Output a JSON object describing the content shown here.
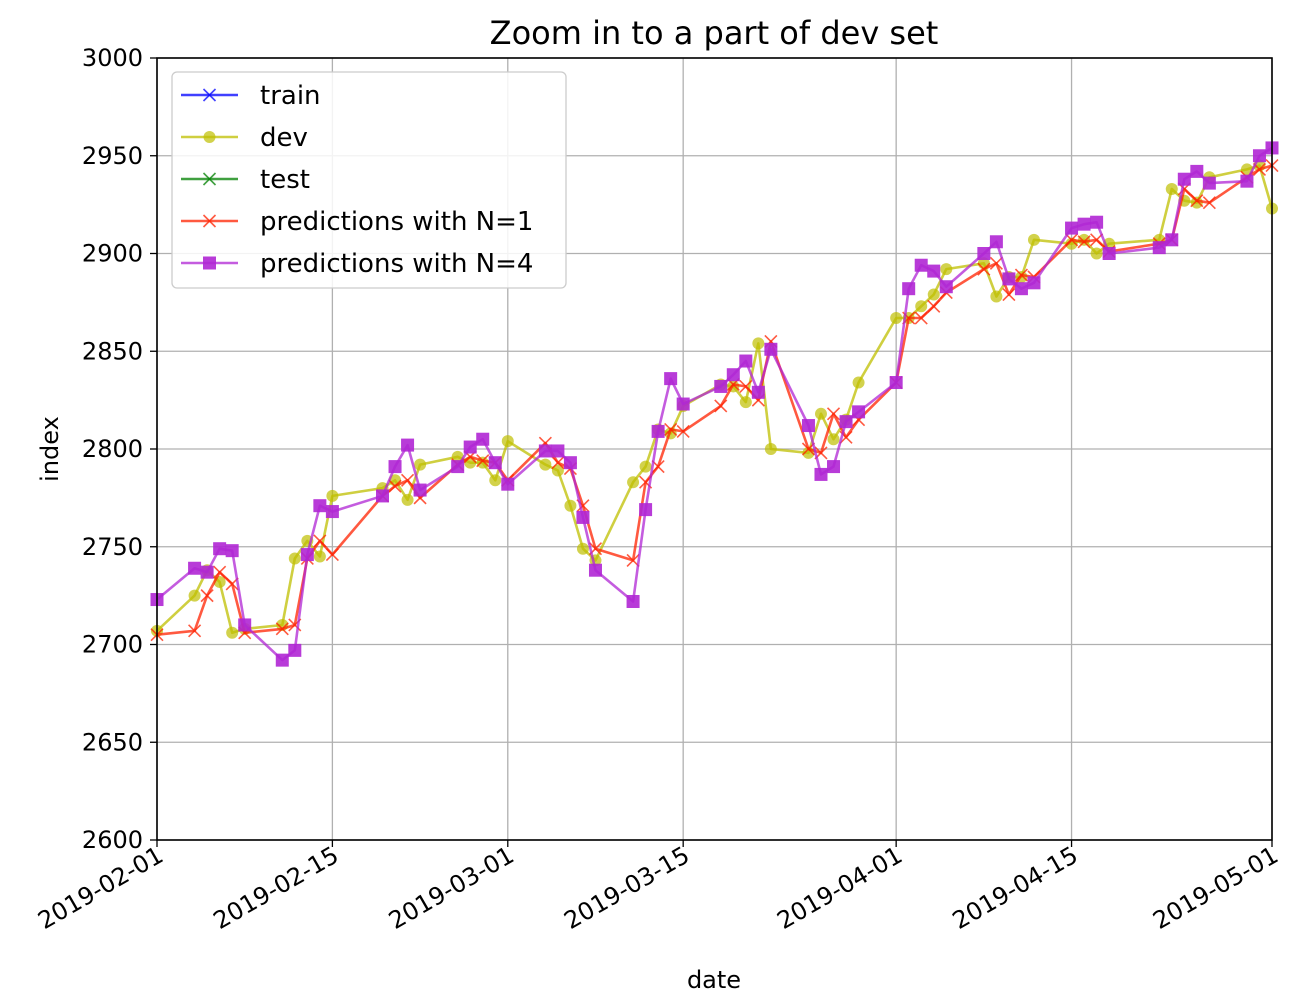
{
  "chart_data": {
    "type": "line",
    "title": "Zoom in to a part of dev set",
    "xlabel": "date",
    "ylabel": "index",
    "xlim": [
      "2019-02-01",
      "2019-05-01"
    ],
    "ylim": [
      2600,
      3000
    ],
    "x_ticks": [
      "2019-02-01",
      "2019-02-15",
      "2019-03-01",
      "2019-03-15",
      "2019-04-01",
      "2019-04-15",
      "2019-05-01"
    ],
    "y_ticks": [
      2600,
      2650,
      2700,
      2750,
      2800,
      2850,
      2900,
      2950,
      3000
    ],
    "grid": true,
    "legend_position": "upper-left",
    "series": [
      {
        "name": "train",
        "color": "#0000ff",
        "marker": "x",
        "points": []
      },
      {
        "name": "dev",
        "color": "#bfbf00",
        "marker": "o",
        "points": [
          [
            "2019-02-01",
            2707
          ],
          [
            "2019-02-04",
            2725
          ],
          [
            "2019-02-05",
            2738
          ],
          [
            "2019-02-06",
            2732
          ],
          [
            "2019-02-07",
            2706
          ],
          [
            "2019-02-08",
            2708
          ],
          [
            "2019-02-11",
            2710
          ],
          [
            "2019-02-12",
            2744
          ],
          [
            "2019-02-13",
            2753
          ],
          [
            "2019-02-14",
            2745
          ],
          [
            "2019-02-15",
            2776
          ],
          [
            "2019-02-19",
            2780
          ],
          [
            "2019-02-20",
            2784
          ],
          [
            "2019-02-21",
            2774
          ],
          [
            "2019-02-22",
            2792
          ],
          [
            "2019-02-25",
            2796
          ],
          [
            "2019-02-26",
            2793
          ],
          [
            "2019-02-27",
            2793
          ],
          [
            "2019-02-28",
            2784
          ],
          [
            "2019-03-01",
            2804
          ],
          [
            "2019-03-04",
            2792
          ],
          [
            "2019-03-05",
            2789
          ],
          [
            "2019-03-06",
            2771
          ],
          [
            "2019-03-07",
            2749
          ],
          [
            "2019-03-08",
            2743
          ],
          [
            "2019-03-11",
            2783
          ],
          [
            "2019-03-12",
            2791
          ],
          [
            "2019-03-13",
            2810
          ],
          [
            "2019-03-14",
            2808
          ],
          [
            "2019-03-15",
            2822
          ],
          [
            "2019-03-18",
            2833
          ],
          [
            "2019-03-19",
            2832
          ],
          [
            "2019-03-20",
            2824
          ],
          [
            "2019-03-21",
            2854
          ],
          [
            "2019-03-22",
            2800
          ],
          [
            "2019-03-25",
            2798
          ],
          [
            "2019-03-26",
            2818
          ],
          [
            "2019-03-27",
            2805
          ],
          [
            "2019-03-28",
            2815
          ],
          [
            "2019-03-29",
            2834
          ],
          [
            "2019-04-01",
            2867
          ],
          [
            "2019-04-02",
            2867
          ],
          [
            "2019-04-03",
            2873
          ],
          [
            "2019-04-04",
            2879
          ],
          [
            "2019-04-05",
            2892
          ],
          [
            "2019-04-08",
            2895
          ],
          [
            "2019-04-09",
            2878
          ],
          [
            "2019-04-10",
            2888
          ],
          [
            "2019-04-11",
            2888
          ],
          [
            "2019-04-12",
            2907
          ],
          [
            "2019-04-15",
            2905
          ],
          [
            "2019-04-16",
            2907
          ],
          [
            "2019-04-17",
            2900
          ],
          [
            "2019-04-18",
            2905
          ],
          [
            "2019-04-22",
            2907
          ],
          [
            "2019-04-23",
            2933
          ],
          [
            "2019-04-24",
            2927
          ],
          [
            "2019-04-25",
            2926
          ],
          [
            "2019-04-26",
            2939
          ],
          [
            "2019-04-29",
            2943
          ],
          [
            "2019-04-30",
            2945
          ],
          [
            "2019-05-01",
            2923
          ]
        ]
      },
      {
        "name": "test",
        "color": "#008000",
        "marker": "x",
        "points": []
      },
      {
        "name": "predictions with N=1",
        "color": "#ff2200",
        "marker": "x",
        "points": [
          [
            "2019-02-01",
            2705
          ],
          [
            "2019-02-04",
            2707
          ],
          [
            "2019-02-05",
            2725
          ],
          [
            "2019-02-06",
            2737
          ],
          [
            "2019-02-07",
            2731
          ],
          [
            "2019-02-08",
            2706
          ],
          [
            "2019-02-11",
            2708
          ],
          [
            "2019-02-12",
            2710
          ],
          [
            "2019-02-13",
            2744
          ],
          [
            "2019-02-14",
            2753
          ],
          [
            "2019-02-15",
            2746
          ],
          [
            "2019-02-19",
            2776
          ],
          [
            "2019-02-20",
            2781
          ],
          [
            "2019-02-21",
            2784
          ],
          [
            "2019-02-22",
            2775
          ],
          [
            "2019-02-25",
            2792
          ],
          [
            "2019-02-26",
            2796
          ],
          [
            "2019-02-27",
            2794
          ],
          [
            "2019-02-28",
            2793
          ],
          [
            "2019-03-01",
            2784
          ],
          [
            "2019-03-04",
            2803
          ],
          [
            "2019-03-05",
            2793
          ],
          [
            "2019-03-06",
            2790
          ],
          [
            "2019-03-07",
            2771
          ],
          [
            "2019-03-08",
            2749
          ],
          [
            "2019-03-11",
            2743
          ],
          [
            "2019-03-12",
            2783
          ],
          [
            "2019-03-13",
            2791
          ],
          [
            "2019-03-14",
            2810
          ],
          [
            "2019-03-15",
            2809
          ],
          [
            "2019-03-18",
            2822
          ],
          [
            "2019-03-19",
            2833
          ],
          [
            "2019-03-20",
            2832
          ],
          [
            "2019-03-21",
            2825
          ],
          [
            "2019-03-22",
            2855
          ],
          [
            "2019-03-25",
            2800
          ],
          [
            "2019-03-26",
            2798
          ],
          [
            "2019-03-27",
            2818
          ],
          [
            "2019-03-28",
            2806
          ],
          [
            "2019-03-29",
            2815
          ],
          [
            "2019-04-01",
            2834
          ],
          [
            "2019-04-02",
            2867
          ],
          [
            "2019-04-03",
            2867
          ],
          [
            "2019-04-04",
            2873
          ],
          [
            "2019-04-05",
            2880
          ],
          [
            "2019-04-08",
            2892
          ],
          [
            "2019-04-09",
            2895
          ],
          [
            "2019-04-10",
            2879
          ],
          [
            "2019-04-11",
            2889
          ],
          [
            "2019-04-12",
            2888
          ],
          [
            "2019-04-15",
            2907
          ],
          [
            "2019-04-16",
            2906
          ],
          [
            "2019-04-17",
            2907
          ],
          [
            "2019-04-18",
            2901
          ],
          [
            "2019-04-22",
            2905
          ],
          [
            "2019-04-23",
            2907
          ],
          [
            "2019-04-24",
            2933
          ],
          [
            "2019-04-25",
            2927
          ],
          [
            "2019-04-26",
            2926
          ],
          [
            "2019-04-29",
            2939
          ],
          [
            "2019-04-30",
            2943
          ],
          [
            "2019-05-01",
            2945
          ]
        ]
      },
      {
        "name": "predictions with N=4",
        "color": "#b026d4",
        "marker": "s",
        "points": [
          [
            "2019-02-01",
            2723
          ],
          [
            "2019-02-04",
            2739
          ],
          [
            "2019-02-05",
            2737
          ],
          [
            "2019-02-06",
            2749
          ],
          [
            "2019-02-07",
            2748
          ],
          [
            "2019-02-08",
            2710
          ],
          [
            "2019-02-11",
            2692
          ],
          [
            "2019-02-12",
            2697
          ],
          [
            "2019-02-13",
            2746
          ],
          [
            "2019-02-14",
            2771
          ],
          [
            "2019-02-15",
            2768
          ],
          [
            "2019-02-19",
            2776
          ],
          [
            "2019-02-20",
            2791
          ],
          [
            "2019-02-21",
            2802
          ],
          [
            "2019-02-22",
            2779
          ],
          [
            "2019-02-25",
            2791
          ],
          [
            "2019-02-26",
            2801
          ],
          [
            "2019-02-27",
            2805
          ],
          [
            "2019-02-28",
            2793
          ],
          [
            "2019-03-01",
            2782
          ],
          [
            "2019-03-04",
            2799
          ],
          [
            "2019-03-05",
            2799
          ],
          [
            "2019-03-06",
            2793
          ],
          [
            "2019-03-07",
            2765
          ],
          [
            "2019-03-08",
            2738
          ],
          [
            "2019-03-11",
            2722
          ],
          [
            "2019-03-12",
            2769
          ],
          [
            "2019-03-13",
            2809
          ],
          [
            "2019-03-14",
            2836
          ],
          [
            "2019-03-15",
            2823
          ],
          [
            "2019-03-18",
            2832
          ],
          [
            "2019-03-19",
            2838
          ],
          [
            "2019-03-20",
            2845
          ],
          [
            "2019-03-21",
            2829
          ],
          [
            "2019-03-22",
            2851
          ],
          [
            "2019-03-25",
            2812
          ],
          [
            "2019-03-26",
            2787
          ],
          [
            "2019-03-27",
            2791
          ],
          [
            "2019-03-28",
            2814
          ],
          [
            "2019-03-29",
            2819
          ],
          [
            "2019-04-01",
            2834
          ],
          [
            "2019-04-02",
            2882
          ],
          [
            "2019-04-03",
            2894
          ],
          [
            "2019-04-04",
            2891
          ],
          [
            "2019-04-05",
            2883
          ],
          [
            "2019-04-08",
            2900
          ],
          [
            "2019-04-09",
            2906
          ],
          [
            "2019-04-10",
            2887
          ],
          [
            "2019-04-11",
            2882
          ],
          [
            "2019-04-12",
            2885
          ],
          [
            "2019-04-15",
            2913
          ],
          [
            "2019-04-16",
            2915
          ],
          [
            "2019-04-17",
            2916
          ],
          [
            "2019-04-18",
            2900
          ],
          [
            "2019-04-22",
            2903
          ],
          [
            "2019-04-23",
            2907
          ],
          [
            "2019-04-24",
            2938
          ],
          [
            "2019-04-25",
            2942
          ],
          [
            "2019-04-26",
            2936
          ],
          [
            "2019-04-29",
            2937
          ],
          [
            "2019-04-30",
            2950
          ],
          [
            "2019-05-01",
            2954
          ]
        ]
      }
    ]
  }
}
